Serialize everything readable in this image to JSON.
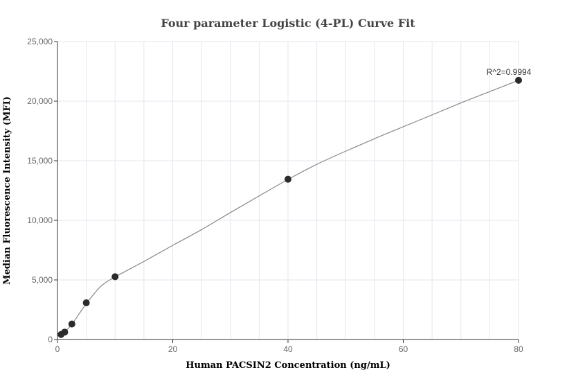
{
  "chart_data": {
    "type": "scatter",
    "title": "Four parameter Logistic (4-PL) Curve Fit",
    "xlabel": "Human PACSIN2 Concentration (ng/mL)",
    "ylabel": "Median Fluorescence Intensity (MFI)",
    "xlim": [
      0,
      80
    ],
    "ylim": [
      0,
      25000
    ],
    "x_ticks": [
      0,
      20,
      40,
      60,
      80
    ],
    "y_ticks": [
      0,
      5000,
      10000,
      15000,
      20000,
      25000
    ],
    "x_tick_labels": [
      "0",
      "20",
      "40",
      "60",
      "80"
    ],
    "y_tick_labels": [
      "0",
      "5,000",
      "10,000",
      "15,000",
      "20,000",
      "25,000"
    ],
    "grid": true,
    "points": [
      {
        "x": 0.625,
        "y": 420
      },
      {
        "x": 1.25,
        "y": 620
      },
      {
        "x": 2.5,
        "y": 1300
      },
      {
        "x": 5,
        "y": 3080
      },
      {
        "x": 10,
        "y": 5270
      },
      {
        "x": 40,
        "y": 13450
      },
      {
        "x": 80,
        "y": 21750
      }
    ],
    "fit_curve": [
      {
        "x": 0.625,
        "y": 400
      },
      {
        "x": 1.25,
        "y": 640
      },
      {
        "x": 2.5,
        "y": 1280
      },
      {
        "x": 5,
        "y": 3000
      },
      {
        "x": 7.5,
        "y": 4450
      },
      {
        "x": 10,
        "y": 5250
      },
      {
        "x": 15,
        "y": 6550
      },
      {
        "x": 20,
        "y": 7900
      },
      {
        "x": 25,
        "y": 9220
      },
      {
        "x": 30,
        "y": 10650
      },
      {
        "x": 35,
        "y": 12050
      },
      {
        "x": 40,
        "y": 13430
      },
      {
        "x": 45,
        "y": 14700
      },
      {
        "x": 50,
        "y": 15800
      },
      {
        "x": 55,
        "y": 16850
      },
      {
        "x": 60,
        "y": 17850
      },
      {
        "x": 65,
        "y": 18850
      },
      {
        "x": 70,
        "y": 19850
      },
      {
        "x": 75,
        "y": 20800
      },
      {
        "x": 80,
        "y": 21750
      }
    ],
    "annotation": {
      "text": "R^2=0.9994",
      "x": 80,
      "y": 21750
    },
    "colors": {
      "point": "#2b2b2b",
      "curve": "#888888",
      "grid": "#e6e6ef",
      "axis": "#333333"
    }
  }
}
